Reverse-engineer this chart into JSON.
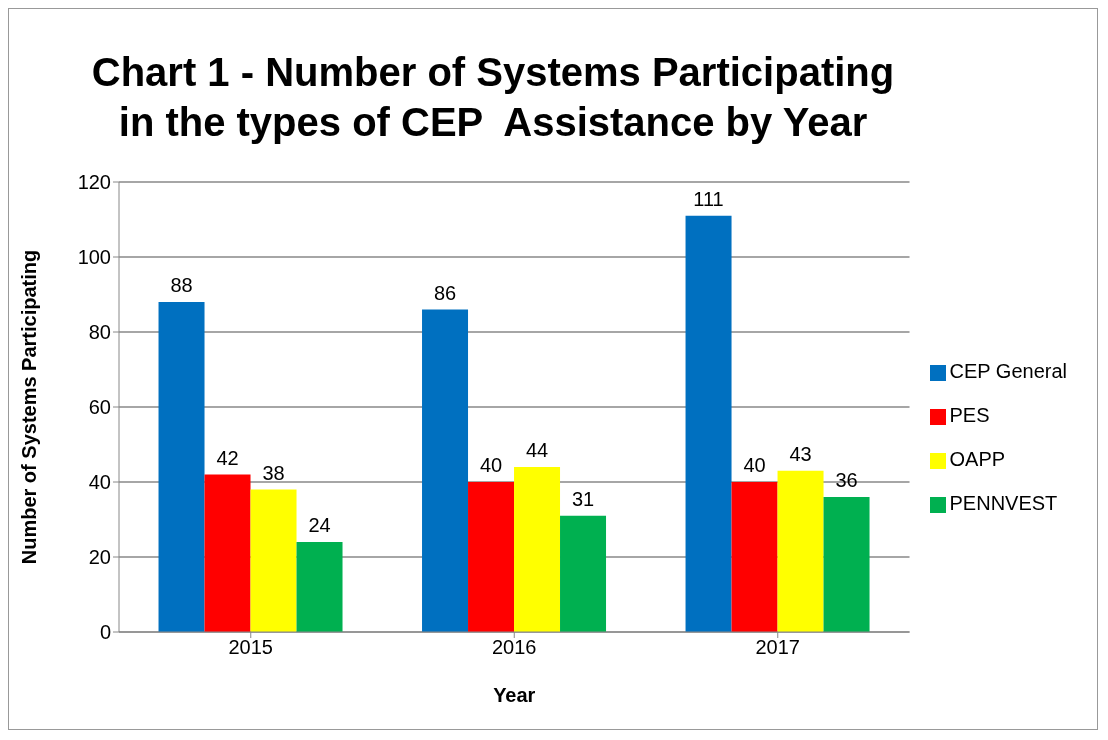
{
  "chart_data": {
    "type": "bar",
    "title": "Chart 1 - Number of Systems Participating in the types of CEP  Assistance by Year",
    "xlabel": "Year",
    "ylabel": "Number of Systems Participating",
    "categories": [
      "2015",
      "2016",
      "2017"
    ],
    "series": [
      {
        "name": "CEP General",
        "color": "#0070c0",
        "values": [
          88,
          86,
          111
        ]
      },
      {
        "name": "PES",
        "color": "#ff0000",
        "values": [
          42,
          40,
          40
        ]
      },
      {
        "name": "OAPP",
        "color": "#ffff00",
        "values": [
          38,
          44,
          43
        ]
      },
      {
        "name": "PENNVEST",
        "color": "#00b050",
        "values": [
          24,
          31,
          36
        ]
      }
    ],
    "ylim": [
      0,
      120
    ],
    "yticks": [
      0,
      20,
      40,
      60,
      80,
      100,
      120
    ],
    "grid": "y",
    "legend": "right",
    "data_labels": true
  }
}
